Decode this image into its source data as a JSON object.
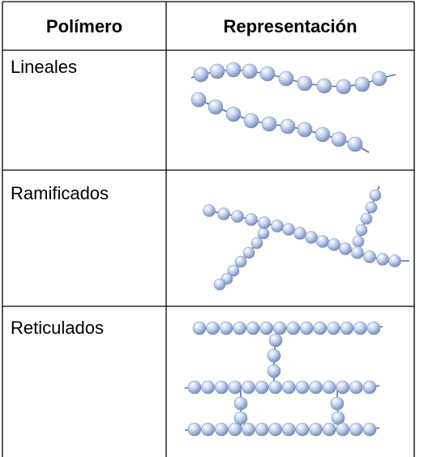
{
  "table": {
    "header": [
      "Polímero",
      "Representación"
    ],
    "rows": [
      [
        "Lineales"
      ],
      [
        "Ramificados"
      ],
      [
        "Reticulados"
      ]
    ]
  }
}
